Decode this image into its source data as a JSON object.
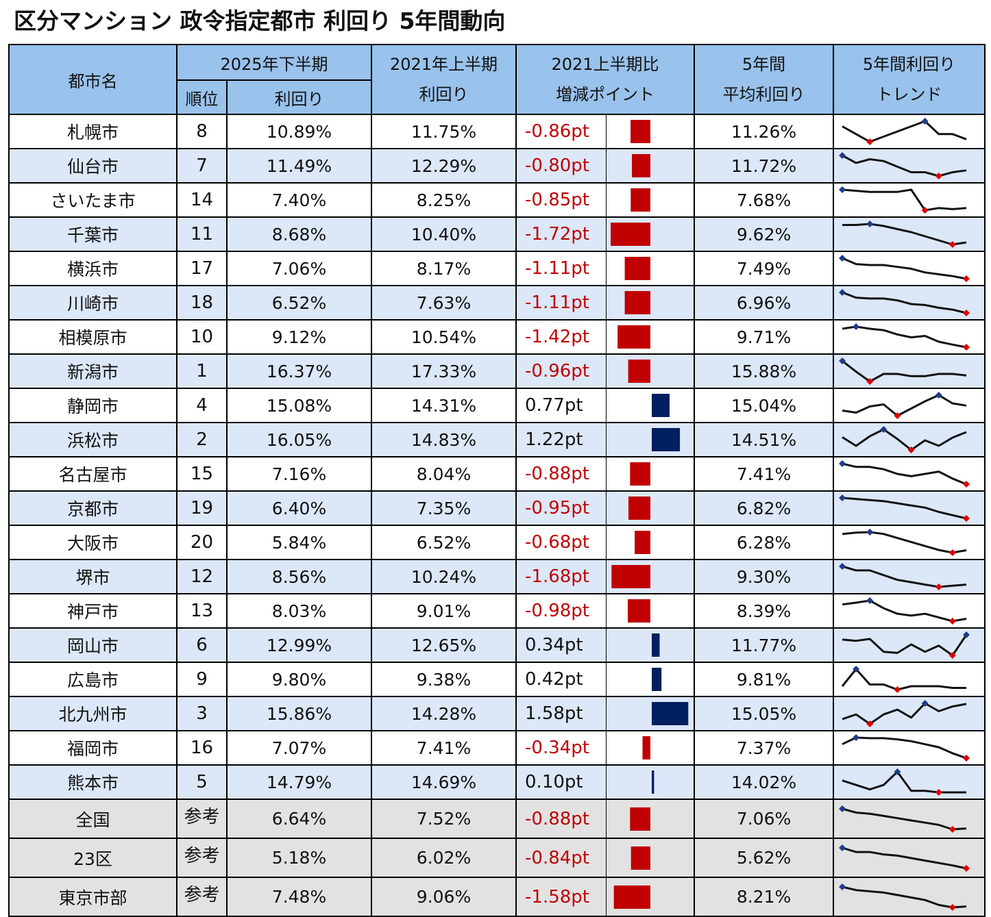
{
  "title": "区分マンション 政令指定都市 利回り 5年間動向",
  "header": {
    "city": "都市名",
    "period_2025h2": "2025年下半期",
    "rank": "順位",
    "yield": "利回り",
    "period_2021h1": "2021年上半期",
    "yield_2021": "利回り",
    "diff_line1": "2021上半期比",
    "diff_line2": "増減ポイント",
    "avg_line1": "5年間",
    "avg_line2": "平均利回り",
    "trend_line1": "5年間利回り",
    "trend_line2": "トレンド"
  },
  "colors": {
    "header_bg": "#99c2ec",
    "row_alt_bg": "#dce7f8",
    "ref_bg": "#e2e2e2",
    "negative": "#c00000",
    "positive": "#002060",
    "spark_line": "#111111",
    "spark_max": "#1f3c88",
    "spark_min": "#e00000"
  },
  "chart_data": {
    "type": "table",
    "columns": [
      "都市名",
      "順位",
      "利回り (2025年下半期)",
      "利回り (2021年上半期)",
      "2021上半期比 増減ポイント",
      "5年間 平均利回り",
      "5年間利回り トレンド"
    ],
    "rows": [
      {
        "city": "札幌市",
        "rank": "8",
        "y2025": "10.89%",
        "y2021": "11.75%",
        "diff": "-0.86pt",
        "diff_value": -0.86,
        "avg": "11.26%",
        "trend": [
          11.5,
          11.2,
          10.9,
          11.1,
          11.3,
          11.5,
          11.7,
          11.2,
          11.2,
          11.0
        ]
      },
      {
        "city": "仙台市",
        "rank": "7",
        "y2025": "11.49%",
        "y2021": "12.29%",
        "diff": "-0.80pt",
        "diff_value": -0.8,
        "avg": "11.72%",
        "trend": [
          12.3,
          11.9,
          12.1,
          12.0,
          11.7,
          11.4,
          11.4,
          11.2,
          11.4,
          11.5
        ]
      },
      {
        "city": "さいたま市",
        "rank": "14",
        "y2025": "7.40%",
        "y2021": "8.25%",
        "diff": "-0.85pt",
        "diff_value": -0.85,
        "avg": "7.68%",
        "trend": [
          8.25,
          8.2,
          8.15,
          8.15,
          8.15,
          8.25,
          7.3,
          7.4,
          7.35,
          7.4
        ]
      },
      {
        "city": "千葉市",
        "rank": "11",
        "y2025": "8.68%",
        "y2021": "10.40%",
        "diff": "-1.72pt",
        "diff_value": -1.72,
        "avg": "9.62%",
        "trend": [
          10.4,
          10.4,
          10.5,
          10.3,
          10.0,
          9.7,
          9.3,
          8.9,
          8.5,
          8.7
        ]
      },
      {
        "city": "横浜市",
        "rank": "17",
        "y2025": "7.06%",
        "y2021": "8.17%",
        "diff": "-1.11pt",
        "diff_value": -1.11,
        "avg": "7.49%",
        "trend": [
          8.17,
          7.85,
          7.8,
          7.8,
          7.7,
          7.6,
          7.4,
          7.3,
          7.2,
          7.06
        ]
      },
      {
        "city": "川崎市",
        "rank": "18",
        "y2025": "6.52%",
        "y2021": "7.63%",
        "diff": "-1.11pt",
        "diff_value": -1.11,
        "avg": "6.96%",
        "trend": [
          7.63,
          7.35,
          7.3,
          7.3,
          7.2,
          7.0,
          6.95,
          6.8,
          6.7,
          6.52
        ]
      },
      {
        "city": "相模原市",
        "rank": "10",
        "y2025": "9.12%",
        "y2021": "10.54%",
        "diff": "-1.42pt",
        "diff_value": -1.42,
        "avg": "9.71%",
        "trend": [
          10.4,
          10.54,
          10.4,
          10.3,
          10.0,
          9.8,
          9.9,
          9.5,
          9.3,
          9.12
        ]
      },
      {
        "city": "新潟市",
        "rank": "1",
        "y2025": "16.37%",
        "y2021": "17.33%",
        "diff": "-0.96pt",
        "diff_value": -0.96,
        "avg": "15.88%",
        "trend": [
          17.33,
          15.9,
          14.6,
          15.6,
          15.6,
          15.3,
          15.3,
          15.6,
          15.6,
          15.4
        ]
      },
      {
        "city": "静岡市",
        "rank": "4",
        "y2025": "15.08%",
        "y2021": "14.31%",
        "diff": "0.77pt",
        "diff_value": 0.77,
        "avg": "15.04%",
        "trend": [
          14.6,
          14.4,
          15.0,
          15.2,
          14.1,
          14.8,
          15.5,
          16.1,
          15.3,
          15.08
        ]
      },
      {
        "city": "浜松市",
        "rank": "2",
        "y2025": "16.05%",
        "y2021": "14.83%",
        "diff": "1.22pt",
        "diff_value": 1.22,
        "avg": "14.51%",
        "trend": [
          14.83,
          14.2,
          14.9,
          15.4,
          14.7,
          13.9,
          14.6,
          14.2,
          14.8,
          15.2
        ]
      },
      {
        "city": "名古屋市",
        "rank": "15",
        "y2025": "7.16%",
        "y2021": "8.04%",
        "diff": "-0.88pt",
        "diff_value": -0.88,
        "avg": "7.41%",
        "trend": [
          8.04,
          7.9,
          7.9,
          7.8,
          7.6,
          7.5,
          7.6,
          7.7,
          7.4,
          7.16
        ]
      },
      {
        "city": "京都市",
        "rank": "19",
        "y2025": "6.40%",
        "y2021": "7.35%",
        "diff": "-0.95pt",
        "diff_value": -0.95,
        "avg": "6.82%",
        "trend": [
          7.35,
          7.3,
          7.25,
          7.2,
          7.1,
          7.0,
          6.9,
          6.7,
          6.55,
          6.4
        ]
      },
      {
        "city": "大阪市",
        "rank": "20",
        "y2025": "5.84%",
        "y2021": "6.52%",
        "diff": "-0.68pt",
        "diff_value": -0.68,
        "avg": "6.28%",
        "trend": [
          6.45,
          6.5,
          6.52,
          6.45,
          6.3,
          6.15,
          6.0,
          5.85,
          5.75,
          5.84
        ]
      },
      {
        "city": "堺市",
        "rank": "12",
        "y2025": "8.56%",
        "y2021": "10.24%",
        "diff": "-1.68pt",
        "diff_value": -1.68,
        "avg": "9.30%",
        "trend": [
          10.24,
          9.9,
          9.9,
          9.5,
          9.1,
          8.9,
          8.7,
          8.5,
          8.6,
          8.7
        ]
      },
      {
        "city": "神戸市",
        "rank": "13",
        "y2025": "8.03%",
        "y2021": "9.01%",
        "diff": "-0.98pt",
        "diff_value": -0.98,
        "avg": "8.39%",
        "trend": [
          8.8,
          8.9,
          9.01,
          8.6,
          8.3,
          8.2,
          8.3,
          8.1,
          7.9,
          8.03
        ]
      },
      {
        "city": "岡山市",
        "rank": "6",
        "y2025": "12.99%",
        "y2021": "12.65%",
        "diff": "0.34pt",
        "diff_value": 0.34,
        "avg": "11.77%",
        "trend": [
          12.6,
          12.5,
          12.65,
          11.6,
          11.5,
          12.2,
          11.6,
          12.1,
          11.3,
          12.99
        ]
      },
      {
        "city": "広島市",
        "rank": "9",
        "y2025": "9.80%",
        "y2021": "9.38%",
        "diff": "0.42pt",
        "diff_value": 0.42,
        "avg": "9.81%",
        "trend": [
          9.5,
          10.5,
          9.6,
          9.6,
          9.3,
          9.5,
          9.5,
          9.5,
          9.4,
          9.4
        ]
      },
      {
        "city": "北九州市",
        "rank": "3",
        "y2025": "15.86%",
        "y2021": "14.28%",
        "diff": "1.58pt",
        "diff_value": 1.58,
        "avg": "15.05%",
        "trend": [
          14.9,
          15.2,
          14.6,
          15.2,
          15.5,
          15.0,
          15.9,
          15.4,
          15.7,
          15.86
        ]
      },
      {
        "city": "福岡市",
        "rank": "16",
        "y2025": "7.07%",
        "y2021": "7.41%",
        "diff": "-0.34pt",
        "diff_value": -0.34,
        "avg": "7.37%",
        "trend": [
          7.3,
          7.41,
          7.4,
          7.4,
          7.38,
          7.35,
          7.3,
          7.25,
          7.15,
          7.07
        ]
      },
      {
        "city": "熊本市",
        "rank": "5",
        "y2025": "14.79%",
        "y2021": "14.69%",
        "diff": "0.10pt",
        "diff_value": 0.1,
        "avg": "14.02%",
        "trend": [
          14.2,
          13.9,
          13.6,
          13.9,
          14.79,
          13.5,
          13.5,
          13.4,
          13.4,
          13.4
        ]
      },
      {
        "city": "全国",
        "rank": "参考",
        "y2025": "6.64%",
        "y2021": "7.52%",
        "diff": "-0.88pt",
        "diff_value": -0.88,
        "avg": "7.06%",
        "trend": [
          7.52,
          7.35,
          7.3,
          7.2,
          7.1,
          7.0,
          6.9,
          6.8,
          6.6,
          6.64
        ]
      },
      {
        "city": "23区",
        "rank": "参考",
        "y2025": "5.18%",
        "y2021": "6.02%",
        "diff": "-0.84pt",
        "diff_value": -0.84,
        "avg": "5.62%",
        "trend": [
          6.02,
          5.85,
          5.85,
          5.75,
          5.7,
          5.6,
          5.5,
          5.4,
          5.3,
          5.18
        ]
      },
      {
        "city": "東京市部",
        "rank": "参考",
        "y2025": "7.48%",
        "y2021": "9.06%",
        "diff": "-1.58pt",
        "diff_value": -1.58,
        "avg": "8.21%",
        "trend": [
          9.06,
          8.8,
          8.7,
          8.6,
          8.4,
          8.2,
          8.0,
          7.6,
          7.4,
          7.48
        ]
      }
    ]
  }
}
